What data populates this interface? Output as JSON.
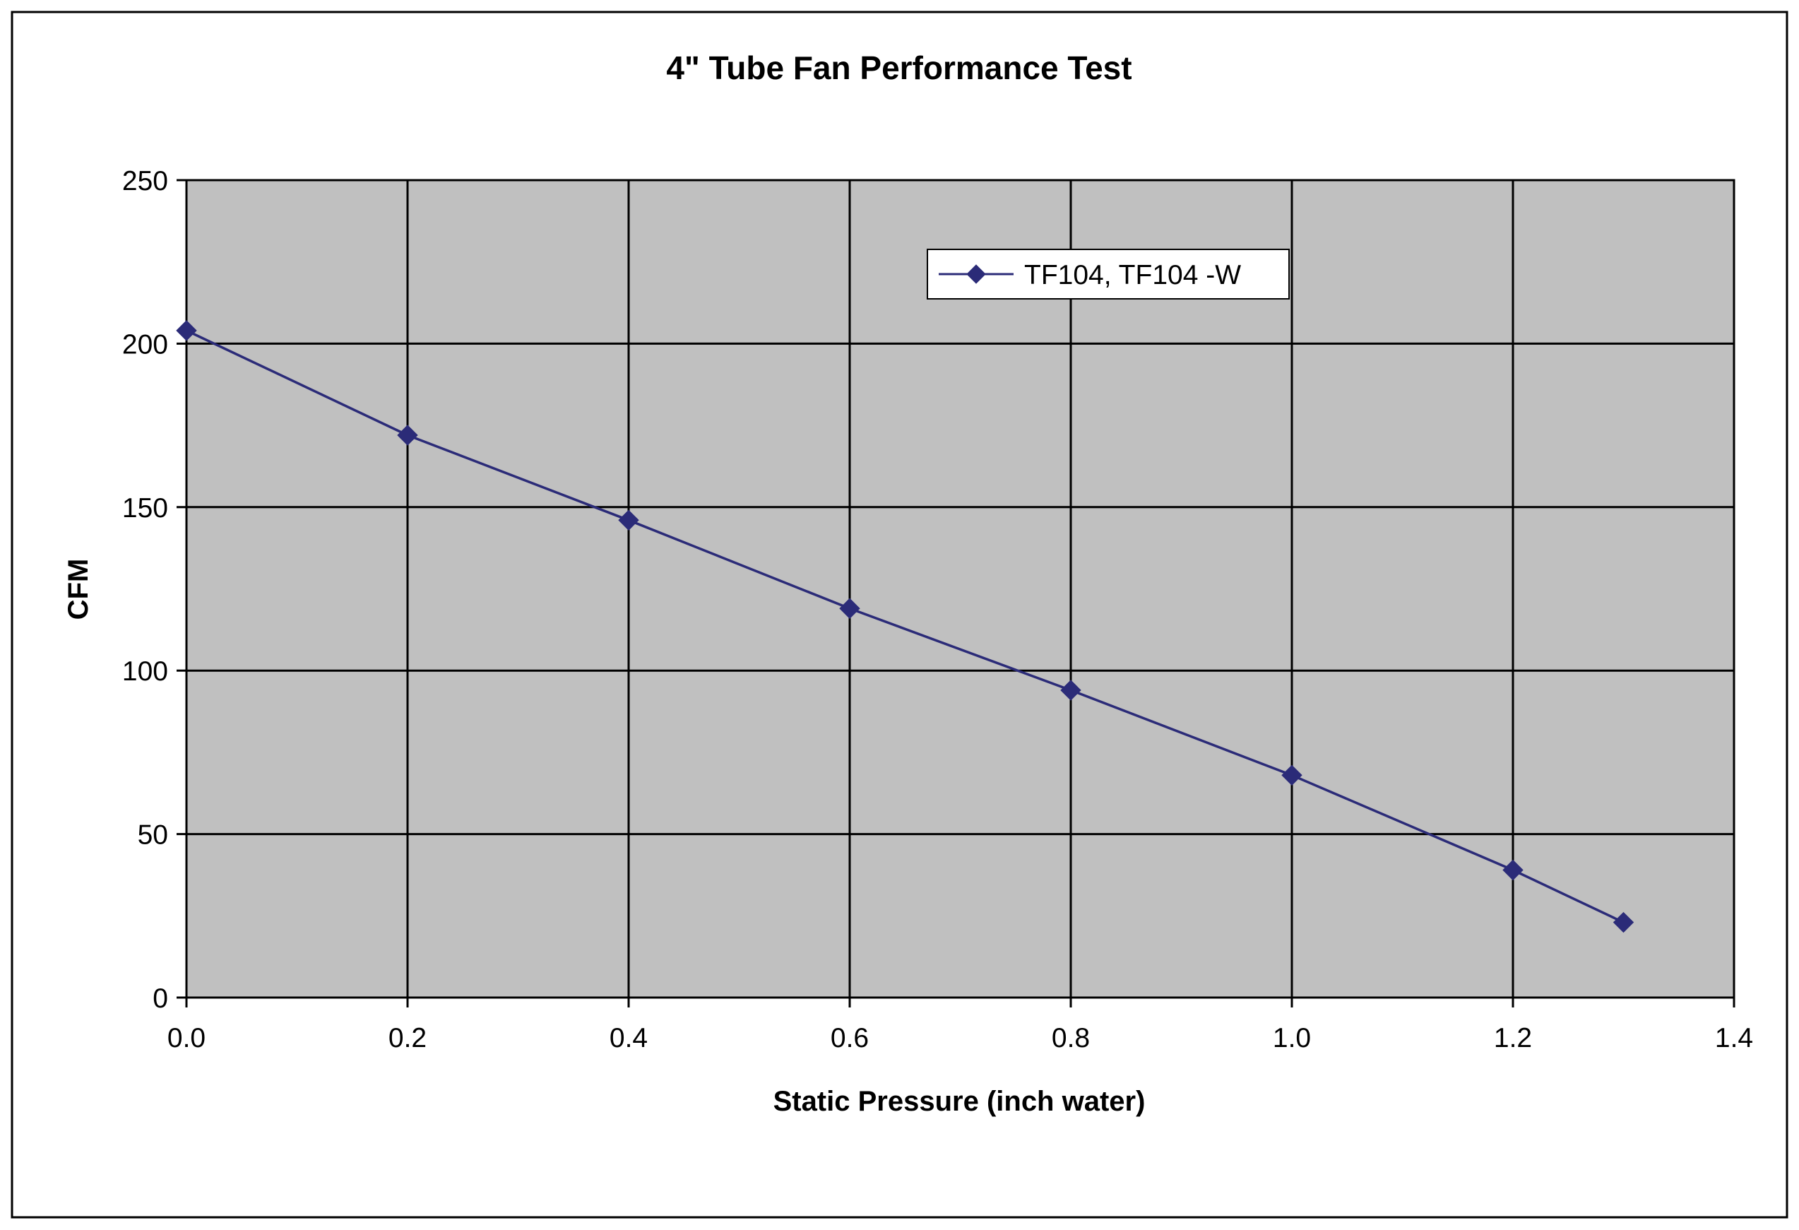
{
  "chart_data": {
    "type": "line",
    "title": "4\" Tube Fan Performance Test",
    "xlabel": "Static Pressure (inch water)",
    "ylabel": "CFM",
    "xlim": [
      0,
      1.4
    ],
    "ylim": [
      0,
      250
    ],
    "x_ticks": [
      "0.0",
      "0.2",
      "0.4",
      "0.6",
      "0.8",
      "1.0",
      "1.2",
      "1.4"
    ],
    "y_ticks": [
      "0",
      "50",
      "100",
      "150",
      "200",
      "250"
    ],
    "grid": true,
    "legend_position": "top-right",
    "plot_background": "#c0c0c0",
    "series": [
      {
        "name": "TF104, TF104 -W",
        "color": "#2b2b78",
        "marker": "diamond",
        "x": [
          0.0,
          0.2,
          0.4,
          0.6,
          0.8,
          1.0,
          1.2,
          1.3
        ],
        "y": [
          204,
          172,
          146,
          119,
          94,
          68,
          39,
          23
        ]
      }
    ]
  }
}
